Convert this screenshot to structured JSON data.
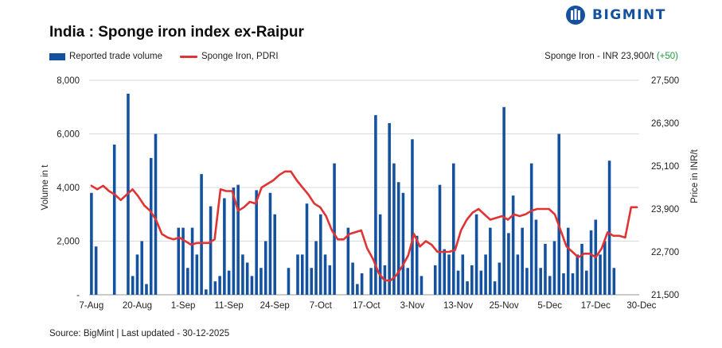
{
  "header": {
    "title": "India : Sponge iron index ex-Raipur",
    "logo_text": "BIGMINT"
  },
  "legend": {
    "volume_label": "Reported trade volume",
    "price_label": "Sponge Iron, PDRI"
  },
  "price_note": {
    "text": "Sponge Iron - INR 23,900/t",
    "change": "(+50)"
  },
  "footer": {
    "source": "Source: BigMint | Last updated - 30-12-2025"
  },
  "colors": {
    "bar": "#1452a0",
    "line": "#e03333",
    "grid": "#d9d9d9",
    "change_positive": "#1e9a3c"
  },
  "chart_data": {
    "type": "bar",
    "combo": "bar-line dual axis",
    "x_tick_labels": [
      "7-Aug",
      "20-Aug",
      "1-Sep",
      "11-Sep",
      "24-Sep",
      "7-Oct",
      "17-Oct",
      "3-Nov",
      "13-Nov",
      "25-Nov",
      "5-Dec",
      "17-Dec",
      "30-Dec"
    ],
    "x_tick_index": [
      0,
      10,
      20,
      30,
      40,
      50,
      60,
      70,
      80,
      90,
      100,
      110,
      120
    ],
    "ylabel_left": "Volume in t",
    "ylabel_right": "Price in INR/t",
    "ylim_left": [
      0,
      8000
    ],
    "yticks_left": [
      "-",
      "2,000",
      "4,000",
      "6,000",
      "8,000"
    ],
    "ylim_right": [
      21500,
      27500
    ],
    "yticks_right": [
      "21,500",
      "22,700",
      "23,900",
      "25,100",
      "26,300",
      "27,500"
    ],
    "grid": "horizontal",
    "series": [
      {
        "name": "Reported trade volume",
        "axis": "left",
        "kind": "bar",
        "values": [
          3800,
          1800,
          0,
          0,
          0,
          5600,
          0,
          0,
          7500,
          700,
          1500,
          2000,
          400,
          5100,
          6000,
          0,
          0,
          0,
          0,
          2500,
          2500,
          1000,
          2500,
          1500,
          4500,
          200,
          3300,
          500,
          700,
          3600,
          900,
          4000,
          4100,
          1500,
          1200,
          700,
          3900,
          1000,
          2000,
          3800,
          3000,
          0,
          0,
          1000,
          0,
          1500,
          1500,
          3400,
          1000,
          2000,
          3000,
          1500,
          1100,
          4900,
          0,
          0,
          2500,
          1200,
          400,
          800,
          0,
          1000,
          6700,
          3000,
          1100,
          6400,
          4900,
          4200,
          3800,
          1000,
          5800,
          2200,
          700,
          0,
          0,
          1100,
          4100,
          1700,
          1500,
          4900,
          900,
          1500,
          500,
          1100,
          3000,
          900,
          1500,
          2500,
          500,
          1200,
          7000,
          2300,
          3700,
          1500,
          2500,
          1000,
          4900,
          2800,
          1000,
          1900,
          700,
          2000,
          6000,
          800,
          2500,
          800,
          1500,
          1900,
          900,
          2400,
          2800,
          1500,
          2000,
          5000,
          1000,
          0,
          0,
          0,
          0,
          0
        ],
        "note": "One bar per trading day; 0 = no bar drawn"
      },
      {
        "name": "Sponge Iron, PDRI",
        "axis": "right",
        "kind": "line",
        "values": [
          24550,
          24450,
          24550,
          24400,
          24300,
          24150,
          24300,
          24450,
          24250,
          24000,
          23850,
          23600,
          23200,
          23100,
          23050,
          23100,
          23000,
          22900,
          22950,
          22950,
          22950,
          23050,
          24450,
          24400,
          24400,
          23850,
          23950,
          24100,
          24050,
          24500,
          24600,
          24700,
          24850,
          24950,
          24950,
          24700,
          24500,
          24300,
          24050,
          23950,
          23700,
          23300,
          23050,
          23050,
          23200,
          23250,
          23300,
          22800,
          22500,
          22100,
          21900,
          21900,
          22050,
          22300,
          22600,
          23200,
          22850,
          23000,
          22900,
          22700,
          22700,
          22700,
          22750,
          23300,
          23600,
          23800,
          23900,
          23750,
          23600,
          23650,
          23700,
          23600,
          23750,
          23700,
          23750,
          23850,
          23900,
          23900,
          23900,
          23750,
          23300,
          22850,
          22700,
          22550,
          22650,
          22650,
          22550,
          22800,
          23250,
          23150,
          23150,
          23100,
          23950,
          23950
        ],
        "note": "Line spans from 7-Aug to 30-Dec; values sampled evenly"
      }
    ]
  }
}
